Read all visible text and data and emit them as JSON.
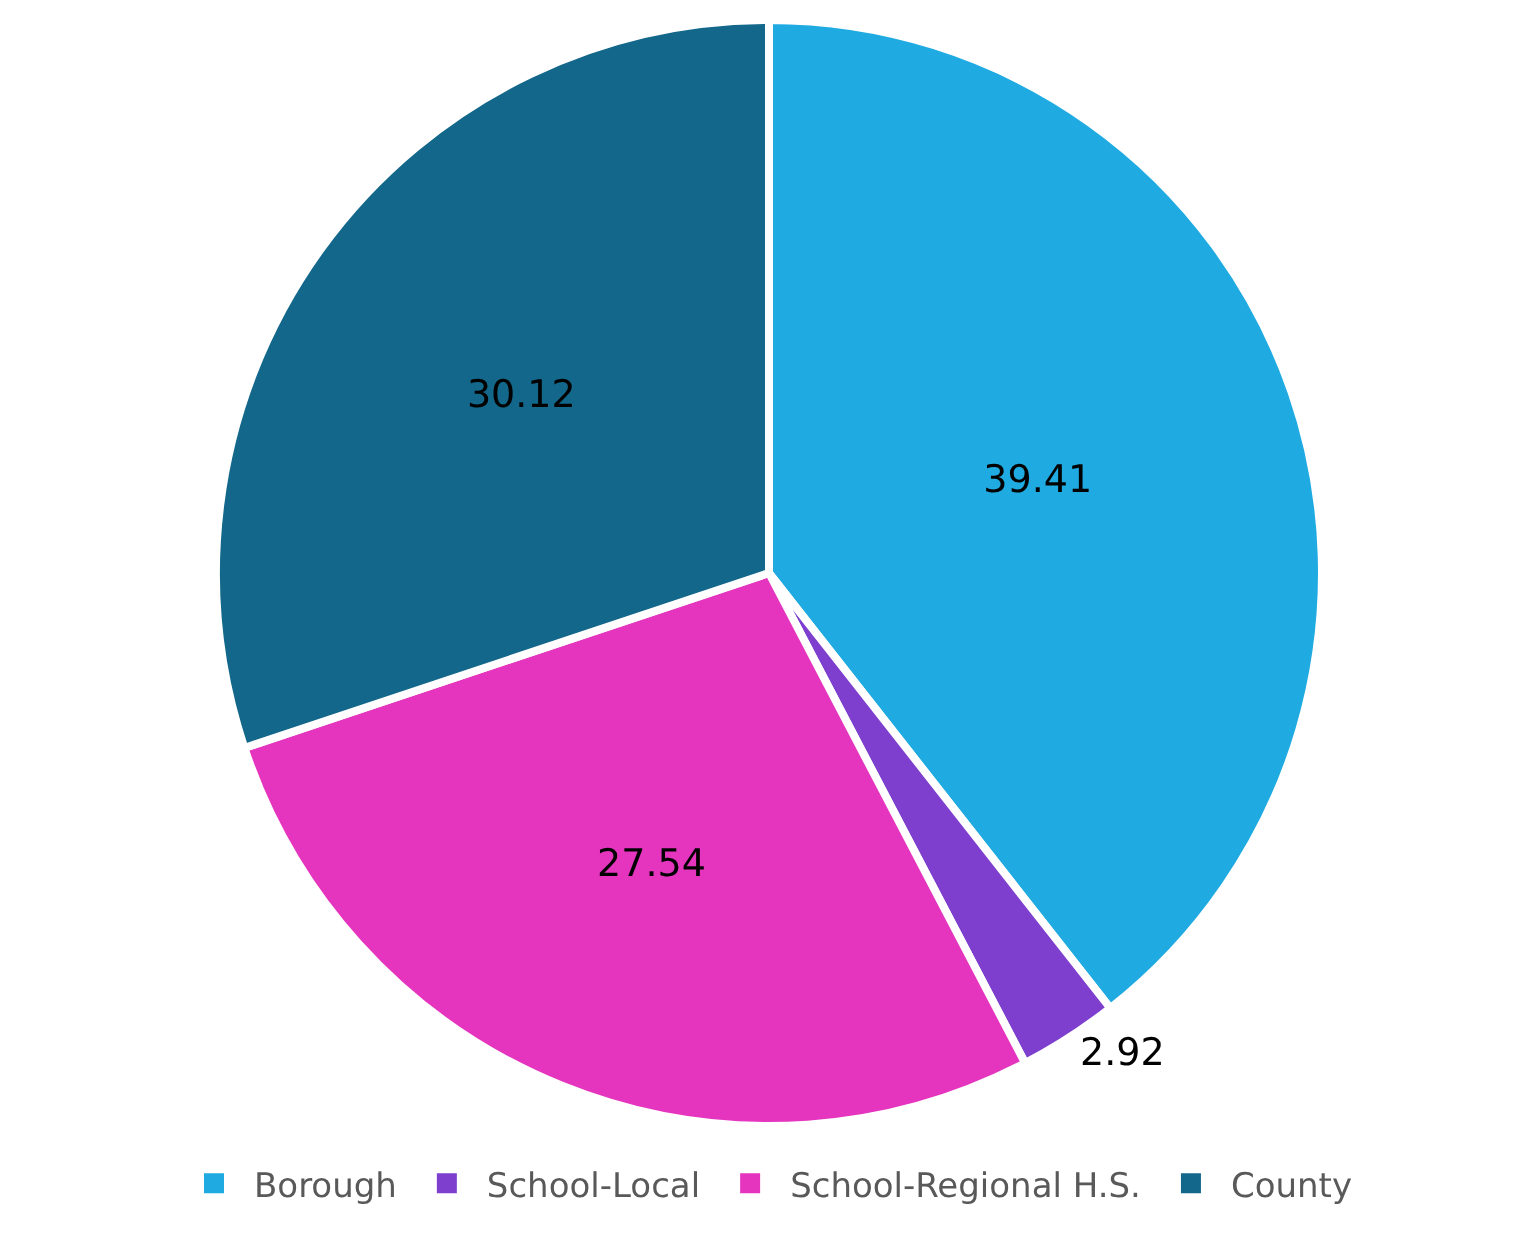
{
  "chart_data": {
    "type": "pie",
    "categories": [
      "Borough",
      "School-Local",
      "School-Regional H.S.",
      "County"
    ],
    "values": [
      39.41,
      2.92,
      27.54,
      30.12
    ],
    "colors": [
      "#1fabe2",
      "#7e3fcf",
      "#e535bf",
      "#12678a"
    ],
    "data_labels": true,
    "legend": "bottom"
  }
}
